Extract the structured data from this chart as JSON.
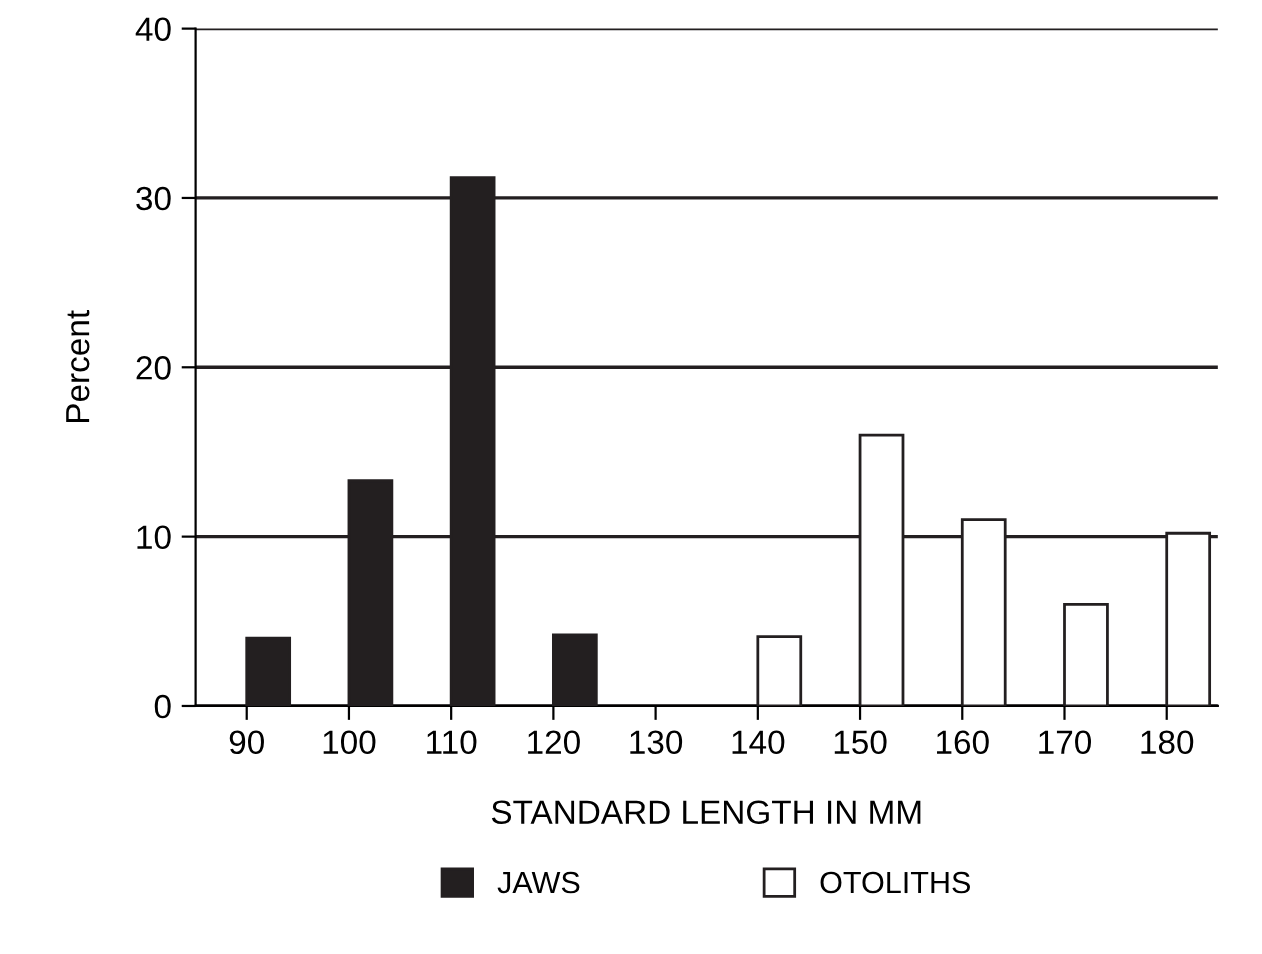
{
  "chart_data": {
    "type": "bar",
    "xlabel": "STANDARD LENGTH IN MM",
    "ylabel": "Percent",
    "x": [
      90,
      100,
      110,
      120,
      130,
      140,
      150,
      160,
      170,
      180
    ],
    "series": [
      {
        "name": "JAWS",
        "color": "#231f20",
        "values": [
          4.0,
          13.3,
          31.2,
          4.2,
          null,
          null,
          null,
          null,
          null,
          null
        ]
      },
      {
        "name": "OTOLITHS",
        "color": "#ffffff",
        "values": [
          null,
          null,
          null,
          null,
          null,
          4.1,
          16.0,
          11.0,
          6.0,
          10.2
        ]
      }
    ],
    "xlim": [
      85,
      185
    ],
    "xticks": [
      90,
      100,
      110,
      120,
      130,
      140,
      150,
      160,
      170,
      180
    ],
    "ylim": [
      0,
      40
    ],
    "yticks": [
      0,
      10,
      20,
      30,
      40
    ],
    "grid": "y",
    "legend": "bottom"
  }
}
